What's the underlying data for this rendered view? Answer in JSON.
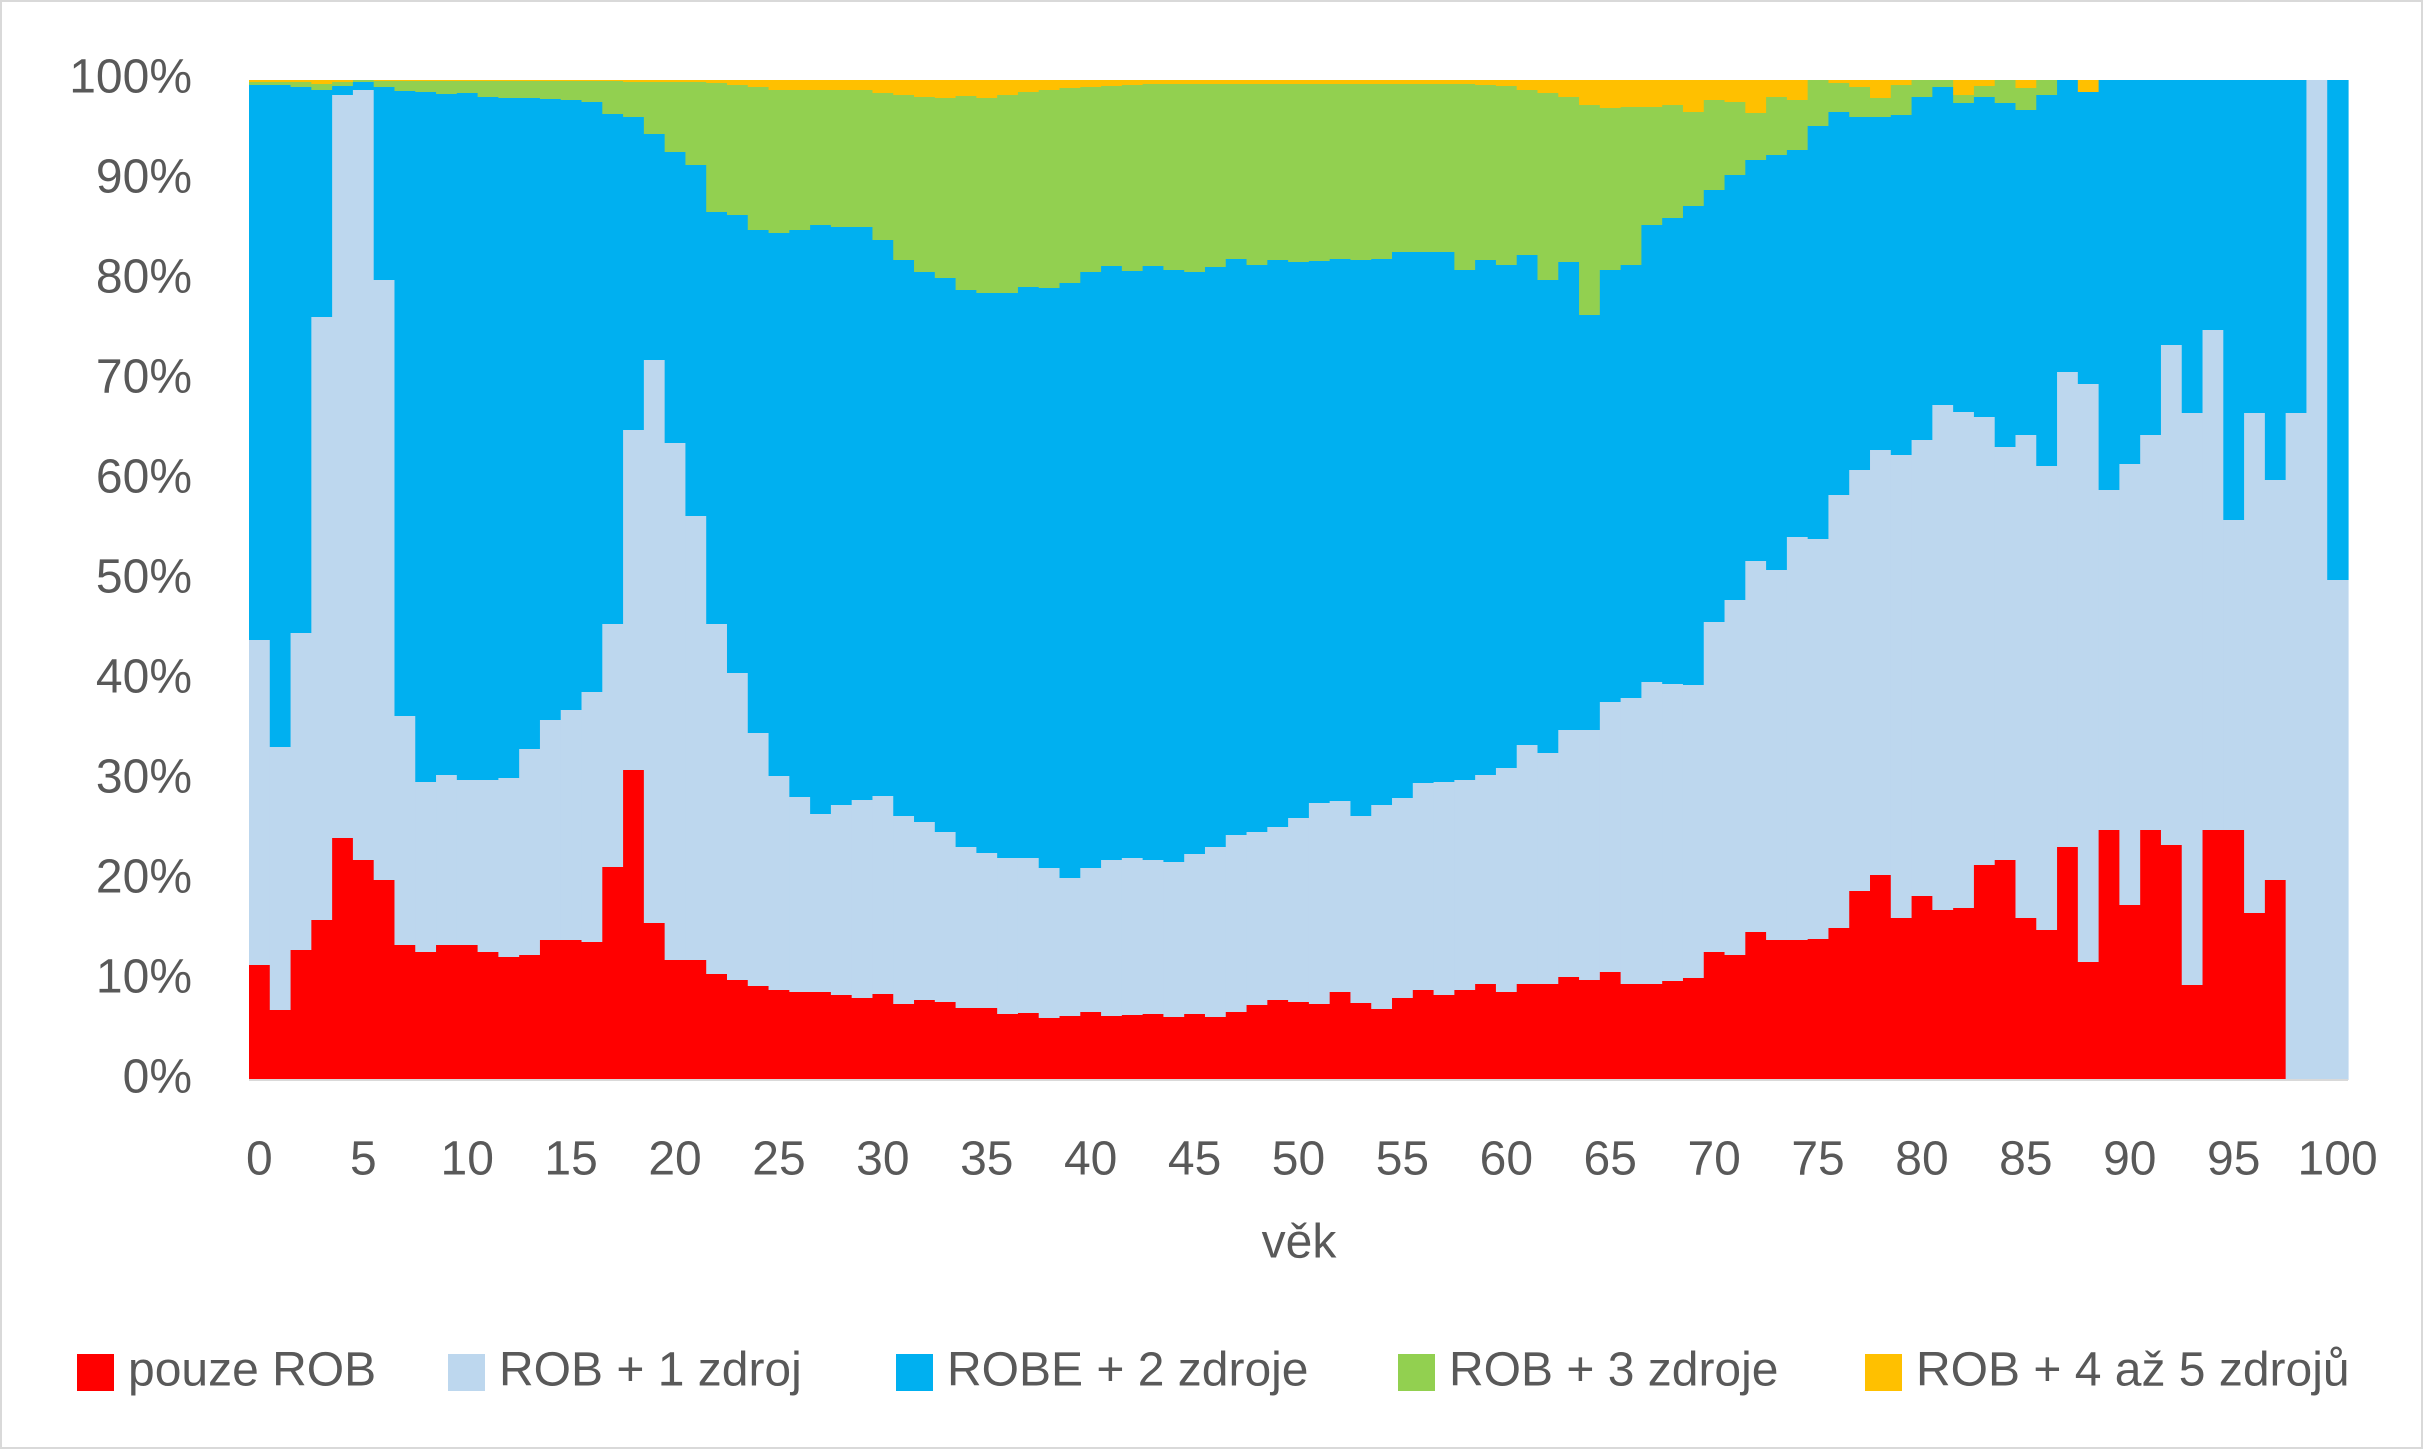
{
  "chart_data": {
    "type": "stacked_bar",
    "x_label": "věk",
    "categories": [
      0,
      null,
      null,
      null,
      null,
      5,
      null,
      null,
      null,
      null,
      10,
      null,
      null,
      null,
      null,
      15,
      null,
      null,
      null,
      null,
      20,
      null,
      null,
      null,
      null,
      25,
      null,
      null,
      null,
      null,
      30,
      null,
      null,
      null,
      null,
      35,
      null,
      null,
      null,
      null,
      40,
      null,
      null,
      null,
      null,
      45,
      null,
      null,
      null,
      null,
      50,
      null,
      null,
      null,
      null,
      55,
      null,
      null,
      null,
      null,
      60,
      null,
      null,
      null,
      null,
      65,
      null,
      null,
      null,
      null,
      70,
      null,
      null,
      null,
      null,
      75,
      null,
      null,
      null,
      null,
      80,
      null,
      null,
      null,
      null,
      85,
      null,
      null,
      null,
      null,
      90,
      null,
      null,
      null,
      null,
      95,
      null,
      null,
      null,
      null,
      100
    ],
    "ylim": [
      0,
      100
    ],
    "yticks": [
      {
        "value": 0,
        "label": "0%"
      },
      {
        "value": 10,
        "label": "10%"
      },
      {
        "value": 20,
        "label": "20%"
      },
      {
        "value": 30,
        "label": "30%"
      },
      {
        "value": 40,
        "label": "40%"
      },
      {
        "value": 50,
        "label": "50%"
      },
      {
        "value": 60,
        "label": "60%"
      },
      {
        "value": 70,
        "label": "70%"
      },
      {
        "value": 80,
        "label": "80%"
      },
      {
        "value": 90,
        "label": "90%"
      },
      {
        "value": 100,
        "label": "100%"
      }
    ],
    "legend": "bottom",
    "series": [
      {
        "name": "pouze ROB",
        "color": "#ff0000",
        "values": [
          11.5,
          7,
          13,
          16,
          24.2,
          22,
          20,
          13.5,
          12.8,
          13.5,
          13.5,
          12.8,
          12.3,
          12.5,
          14,
          14,
          13.8,
          21.3,
          31,
          15.7,
          12,
          12,
          10.6,
          10,
          9.4,
          9,
          8.8,
          8.8,
          8.5,
          8.2,
          8.6,
          7.6,
          8,
          7.8,
          7.2,
          7.2,
          6.6,
          6.7,
          6.2,
          6.4,
          6.8,
          6.4,
          6.5,
          6.6,
          6.3,
          6.6,
          6.3,
          6.8,
          7.5,
          8,
          7.8,
          7.6,
          8.8,
          7.7,
          7.1,
          8.2,
          9,
          8.5,
          9,
          9.6,
          8.8,
          9.6,
          9.6,
          10.3,
          10,
          10.8,
          9.6,
          9.6,
          9.9,
          10.2,
          12.8,
          12.5,
          14.8,
          14,
          14,
          14.1,
          15.2,
          18.9,
          20.5,
          16.2,
          18.4,
          17,
          17.2,
          21.5,
          22,
          16.2,
          15,
          23.3,
          11.8,
          25,
          17.5,
          25,
          23.5,
          9.5,
          25,
          25,
          16.7,
          20,
          0,
          0,
          0
        ]
      },
      {
        "name": "ROB + 1 zdroj",
        "color": "#bdd7ee",
        "values": [
          32.5,
          26.3,
          31.7,
          60.3,
          74.3,
          77,
          60,
          22.9,
          17,
          17,
          16.5,
          17.2,
          17.9,
          20.6,
          22,
          23,
          25,
          24.3,
          34,
          56.3,
          51.7,
          44.4,
          35,
          30.7,
          25.3,
          21.4,
          19.5,
          17.8,
          19,
          19.8,
          19.8,
          18.8,
          17.8,
          17,
          16.1,
          15.5,
          15.6,
          15.5,
          15,
          13.8,
          14.4,
          15.6,
          15.7,
          15.4,
          15.5,
          16,
          17,
          17.7,
          17.3,
          17.3,
          18.4,
          20.1,
          19.1,
          18.7,
          20.4,
          20,
          20.7,
          21.3,
          21,
          20.9,
          22.4,
          23.9,
          23.1,
          24.7,
          25,
          27,
          28.6,
          30.2,
          29.7,
          29.3,
          33,
          35.5,
          37.1,
          37,
          40.3,
          40,
          43.3,
          42.1,
          42.5,
          46.3,
          45.6,
          50.5,
          49.6,
          44.8,
          41.3,
          48.3,
          46.4,
          47.5,
          57.8,
          34,
          44.1,
          39.5,
          50,
          57.2,
          50,
          31,
          50,
          40,
          66.7,
          100,
          50
        ]
      },
      {
        "name": "ROBE + 2 zdroje",
        "color": "#00b0f0",
        "values": [
          55.5,
          66.2,
          54.6,
          22.7,
          0.9,
          0.8,
          19.3,
          62.5,
          69,
          68.1,
          68.7,
          68.3,
          68,
          65.1,
          62.1,
          61,
          59,
          51,
          31.3,
          22.6,
          29.1,
          35.1,
          41.2,
          45.8,
          50.3,
          54.3,
          56.7,
          58.9,
          57.8,
          57.3,
          55.6,
          55.6,
          55,
          55.4,
          55.7,
          56,
          56.5,
          57.1,
          58,
          59.5,
          59.6,
          59.4,
          58.7,
          59.4,
          59.2,
          58.2,
          58,
          57.6,
          56.7,
          56.7,
          55.6,
          54.2,
          54.2,
          55.6,
          54.6,
          54.6,
          53.1,
          53,
          51,
          51.5,
          50.3,
          49,
          47.3,
          46.8,
          41.5,
          43.2,
          43.3,
          45.7,
          46.6,
          47.9,
          43.2,
          42.5,
          40.1,
          41.5,
          38.7,
          41.3,
          38.3,
          35.3,
          33.3,
          34,
          34.3,
          31.8,
          30.9,
          32,
          34.4,
          32.5,
          37.1,
          29.2,
          29.2,
          41,
          38.4,
          35.5,
          26.5,
          33.3,
          25,
          44,
          33.3,
          40,
          33.3,
          0,
          50
        ]
      },
      {
        "name": "ROB + 3 zdroje",
        "color": "#92d050",
        "values": [
          0.3,
          0.3,
          0.5,
          0.6,
          0.4,
          0.2,
          0.6,
          1,
          1.1,
          1.3,
          1.2,
          1.6,
          1.7,
          1.7,
          1.8,
          1.9,
          2.1,
          3.3,
          3.5,
          5.2,
          7,
          8.3,
          12.9,
          13,
          14.3,
          14.3,
          14,
          13.5,
          13.7,
          13.7,
          14.7,
          16.5,
          17.5,
          18,
          19.4,
          19.5,
          19.8,
          19.5,
          19.8,
          19.5,
          18.5,
          18,
          18.6,
          18.2,
          18.6,
          18.8,
          18.3,
          17.5,
          18.1,
          17.6,
          17.8,
          17.7,
          17.5,
          17.6,
          17.5,
          16.8,
          16.8,
          16.8,
          18.6,
          17.5,
          17.9,
          16.5,
          18.7,
          16.5,
          21,
          16.2,
          15.8,
          11.8,
          11.3,
          9.4,
          9,
          7.3,
          4.7,
          5.8,
          5,
          4.6,
          2.9,
          3,
          1.9,
          3,
          1.7,
          0.7,
          0.8,
          1.1,
          2.3,
          2.2,
          1.5,
          0,
          0,
          0,
          0,
          0,
          0,
          0,
          0,
          0,
          0,
          0,
          0,
          0,
          0
        ]
      },
      {
        "name": "ROB + 4 až 5 zdrojů",
        "color": "#ffc000",
        "values": [
          0.2,
          0.2,
          0.2,
          0.4,
          0.2,
          0,
          0.1,
          0.1,
          0.1,
          0.1,
          0.1,
          0.1,
          0.1,
          0.1,
          0.1,
          0.1,
          0.1,
          0.1,
          0.2,
          0.2,
          0.2,
          0.2,
          0.3,
          0.5,
          0.7,
          1,
          1,
          1,
          1,
          1,
          1.3,
          1.5,
          1.7,
          1.8,
          1.6,
          1.8,
          1.5,
          1.2,
          1,
          0.8,
          0.7,
          0.6,
          0.5,
          0.4,
          0.4,
          0.4,
          0.4,
          0.4,
          0.4,
          0.4,
          0.4,
          0.4,
          0.4,
          0.4,
          0.4,
          0.4,
          0.4,
          0.4,
          0.4,
          0.5,
          0.6,
          1,
          1.3,
          1.7,
          2.5,
          2.8,
          2.7,
          2.7,
          2.5,
          3.2,
          2,
          2.2,
          3.3,
          1.7,
          2,
          0,
          0.3,
          0.7,
          1.8,
          0.5,
          0,
          0,
          1.5,
          0.6,
          0,
          0.8,
          0,
          0,
          1.2,
          0,
          0,
          0,
          0,
          0,
          0,
          0,
          0,
          0,
          0,
          0,
          0
        ]
      }
    ]
  }
}
